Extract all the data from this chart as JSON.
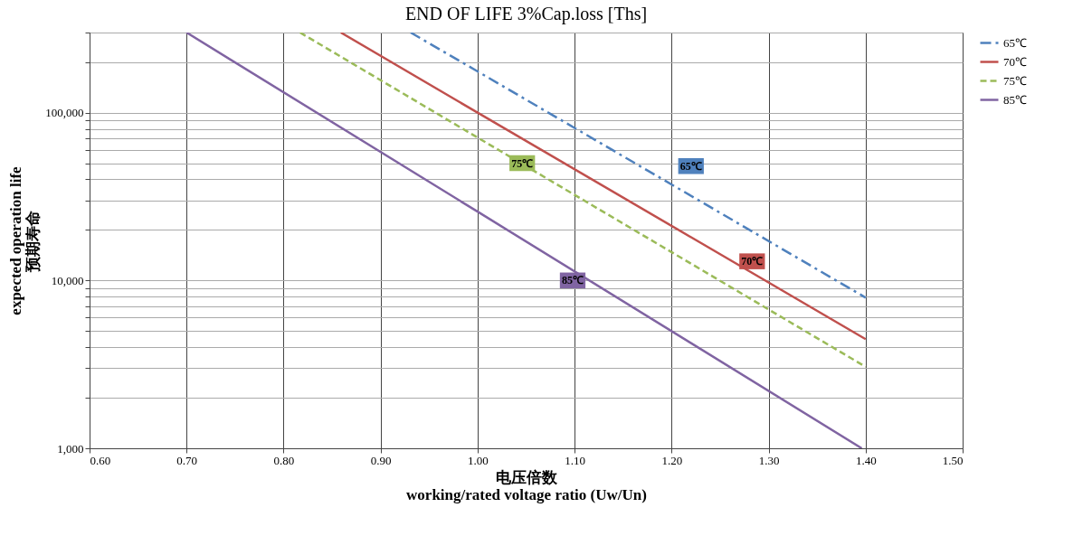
{
  "chart_data": {
    "type": "line",
    "title": "END OF LIFE  3%Cap.loss [Ths]",
    "xlabel": "电压倍数\nworking/rated voltage ratio (Uw/Un)",
    "ylabel": "expected operation life\n预期寿命",
    "log": "y",
    "grid": true,
    "legend": "right",
    "xlim": [
      0.6,
      1.5
    ],
    "xticks": [
      {
        "value": 0.6,
        "label": "0.60"
      },
      {
        "value": 0.7,
        "label": "0.70"
      },
      {
        "value": 0.8,
        "label": "0.80"
      },
      {
        "value": 0.9,
        "label": "0.90"
      },
      {
        "value": 1.0,
        "label": "1.00"
      },
      {
        "value": 1.1,
        "label": "1.10"
      },
      {
        "value": 1.2,
        "label": "1.20"
      },
      {
        "value": 1.3,
        "label": "1.30"
      },
      {
        "value": 1.4,
        "label": "1.40"
      },
      {
        "value": 1.5,
        "label": "1.50"
      }
    ],
    "ylim": [
      1000,
      300000
    ],
    "yticks": [
      {
        "value": 1000,
        "label": "1,000"
      },
      {
        "value": 2000,
        "label": null
      },
      {
        "value": 3000,
        "label": null
      },
      {
        "value": 4000,
        "label": null
      },
      {
        "value": 5000,
        "label": null
      },
      {
        "value": 6000,
        "label": null
      },
      {
        "value": 7000,
        "label": null
      },
      {
        "value": 8000,
        "label": null
      },
      {
        "value": 9000,
        "label": null
      },
      {
        "value": 10000,
        "label": "10,000"
      },
      {
        "value": 20000,
        "label": null
      },
      {
        "value": 30000,
        "label": null
      },
      {
        "value": 40000,
        "label": null
      },
      {
        "value": 50000,
        "label": null
      },
      {
        "value": 60000,
        "label": null
      },
      {
        "value": 70000,
        "label": null
      },
      {
        "value": 80000,
        "label": null
      },
      {
        "value": 90000,
        "label": null
      },
      {
        "value": 100000,
        "label": "100,000"
      },
      {
        "value": 200000,
        "label": null
      },
      {
        "value": 300000,
        "label": null
      }
    ],
    "series": [
      {
        "name": "65℃",
        "color": "#4f81bd",
        "line_style": "dashdot",
        "x": [
          0.931,
          1.0,
          1.4
        ],
        "values": [
          300000,
          176000,
          7900
        ]
      },
      {
        "name": "70℃",
        "color": "#c0504d",
        "line_style": "solid",
        "x": [
          0.859,
          1.0,
          1.4
        ],
        "values": [
          300000,
          100000,
          4470
        ]
      },
      {
        "name": "75℃",
        "color": "#9bbb59",
        "line_style": "dashed",
        "x": [
          0.817,
          1.0,
          1.4
        ],
        "values": [
          300000,
          71000,
          3060
        ]
      },
      {
        "name": "85℃",
        "color": "#8064a2",
        "line_style": "solid",
        "x": [
          0.7,
          1.0,
          1.396
        ],
        "values": [
          300000,
          25700,
          1000
        ]
      }
    ],
    "annotations": [
      {
        "text": "65℃",
        "x": 1.22,
        "y": 48000
      },
      {
        "text": "70℃",
        "x": 1.283,
        "y": 13000
      },
      {
        "text": "75℃",
        "x": 1.046,
        "y": 50000
      },
      {
        "text": "85℃",
        "x": 1.098,
        "y": 10000
      }
    ]
  }
}
